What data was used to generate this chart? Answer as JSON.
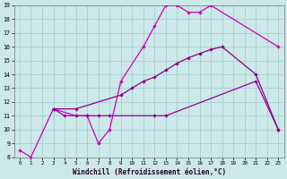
{
  "xlabel": "Windchill (Refroidissement éolien,°C)",
  "bg_color": "#cce8e8",
  "grid_color": "#aad4d4",
  "xlim": [
    -0.5,
    23.5
  ],
  "ylim": [
    8,
    19
  ],
  "yticks": [
    8,
    9,
    10,
    11,
    12,
    13,
    14,
    15,
    16,
    17,
    18,
    19
  ],
  "xticks": [
    0,
    1,
    2,
    3,
    4,
    5,
    6,
    7,
    8,
    9,
    10,
    11,
    12,
    13,
    14,
    15,
    16,
    17,
    18,
    19,
    20,
    21,
    22,
    23
  ],
  "line1_x": [
    0,
    1,
    3,
    5,
    6,
    7,
    8,
    9,
    11,
    12,
    13,
    14,
    15,
    16,
    17,
    23
  ],
  "line1_y": [
    8.5,
    8.0,
    11.5,
    11.0,
    11.0,
    9.0,
    10.0,
    13.5,
    16.0,
    17.5,
    19.0,
    19.0,
    18.5,
    18.5,
    19.0,
    16.0
  ],
  "line2_x": [
    3,
    4,
    5,
    6,
    7,
    8,
    12,
    13,
    21,
    23
  ],
  "line2_y": [
    11.5,
    11.0,
    11.0,
    11.0,
    11.0,
    11.0,
    11.0,
    11.0,
    13.5,
    10.0
  ],
  "line3_x": [
    3,
    5,
    9,
    10,
    11,
    12,
    13,
    14,
    15,
    16,
    17,
    18,
    21,
    23
  ],
  "line3_y": [
    11.5,
    11.5,
    12.5,
    13.0,
    13.5,
    13.8,
    14.3,
    14.8,
    15.2,
    15.5,
    15.8,
    16.0,
    14.0,
    10.0
  ],
  "line1_color": "#cc00bb",
  "line2_color": "#990099",
  "line3_color": "#880088"
}
